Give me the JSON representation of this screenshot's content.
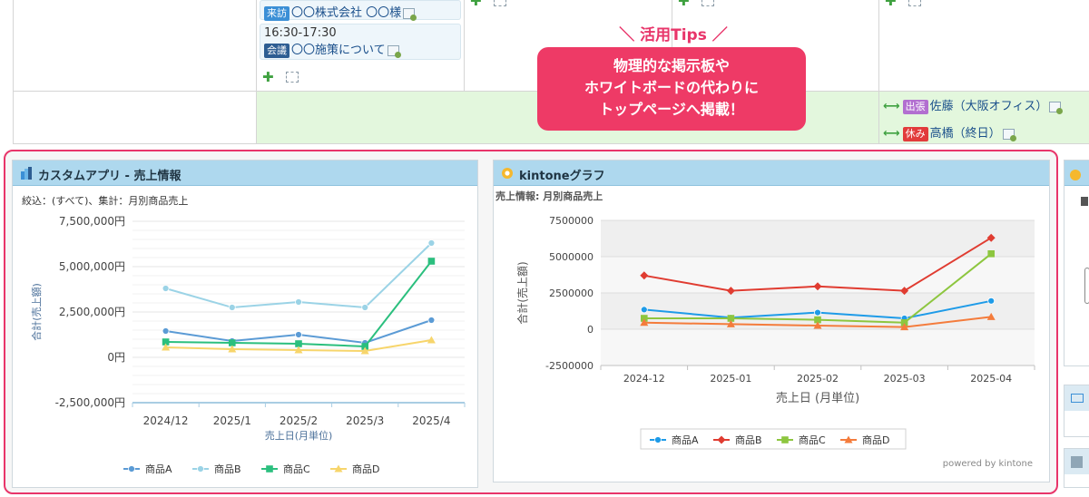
{
  "calendar": {
    "events": [
      {
        "tag": "来訪",
        "text": "〇〇株式会社 〇〇様"
      },
      {
        "time": "16:30-17:30",
        "tag": "会議",
        "text": "〇〇施策について"
      }
    ],
    "side_events": [
      {
        "tag": "出張",
        "text": "佐藤（大阪オフィス）"
      },
      {
        "tag": "休み",
        "text": "高橋（終日）"
      }
    ],
    "add_symbol": "✚"
  },
  "tips": {
    "heading": "＼ 活用Tips ／",
    "lines": [
      "物理的な掲示板や",
      "ホワイトボードの代わりに",
      "トップページへ掲載！"
    ]
  },
  "panel_left": {
    "title": "カスタムアプリ - 売上情報",
    "filter": "絞込：(すべて)、集計：月別商品売上",
    "powered_by": ""
  },
  "panel_right": {
    "title": "kintoneグラフ",
    "subtitle": "売上情報: 月別商品売上",
    "powered_by": "powered by kintone"
  },
  "colors": {
    "商品A_left": "#5b9bd5",
    "商品B_left": "#9bd3e6",
    "商品C_left": "#2bbf7e",
    "商品D_left": "#f7d56b",
    "商品A_right": "#1e9be8",
    "商品B_right": "#e03c31",
    "商品C_right": "#8dc63f",
    "商品D_right": "#f47c3c",
    "tips": "#ee3a66"
  },
  "chart_data": [
    {
      "type": "line",
      "title": "",
      "categories": [
        "2024/12",
        "2025/1",
        "2025/2",
        "2025/3",
        "2025/4"
      ],
      "xlabel": "売上日(月単位)",
      "ylabel": "合計(売上額)",
      "ylim": [
        -2500000,
        7500000
      ],
      "yticks": [
        "7,500,000円",
        "5,000,000円",
        "2,500,000円",
        "0円",
        "-2,500,000円"
      ],
      "legend_position": "bottom",
      "series": [
        {
          "name": "商品A",
          "values": [
            1450000,
            900000,
            1250000,
            800000,
            2050000
          ]
        },
        {
          "name": "商品B",
          "values": [
            3800000,
            2750000,
            3050000,
            2750000,
            6300000
          ]
        },
        {
          "name": "商品C",
          "values": [
            850000,
            800000,
            750000,
            600000,
            5300000
          ]
        },
        {
          "name": "商品D",
          "values": [
            550000,
            450000,
            400000,
            350000,
            950000
          ]
        }
      ]
    },
    {
      "type": "line",
      "title": "",
      "categories": [
        "2024-12",
        "2025-01",
        "2025-02",
        "2025-03",
        "2025-04"
      ],
      "xlabel": "売上日 (月単位)",
      "ylabel": "合計(売上額)",
      "ylim": [
        -2500000,
        7500000
      ],
      "yticks": [
        "7500000",
        "5000000",
        "2500000",
        "0",
        "-2500000"
      ],
      "legend_position": "bottom",
      "series": [
        {
          "name": "商品A",
          "values": [
            1350000,
            800000,
            1150000,
            750000,
            1950000
          ]
        },
        {
          "name": "商品B",
          "values": [
            3700000,
            2650000,
            2950000,
            2650000,
            6300000
          ]
        },
        {
          "name": "商品C",
          "values": [
            750000,
            750000,
            650000,
            450000,
            5200000
          ]
        },
        {
          "name": "商品D",
          "values": [
            450000,
            350000,
            250000,
            150000,
            850000
          ]
        }
      ]
    }
  ]
}
